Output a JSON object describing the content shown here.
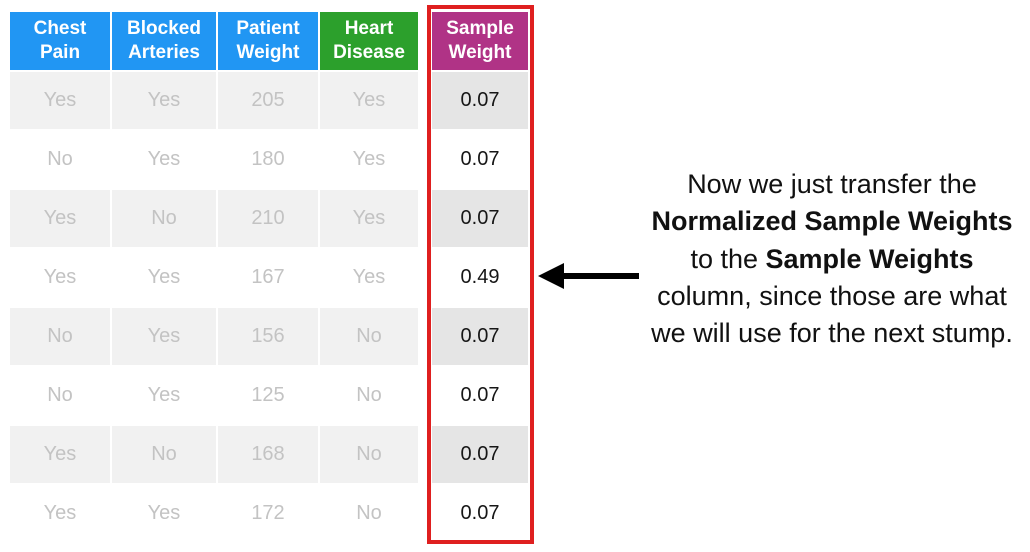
{
  "table": {
    "columns": [
      {
        "label": "Chest Pain",
        "header_color": "#2196f3"
      },
      {
        "label": "Blocked Arteries",
        "header_color": "#2196f3"
      },
      {
        "label": "Patient Weight",
        "header_color": "#2196f3"
      },
      {
        "label": "Heart Disease",
        "header_color": "#2ca02c"
      },
      {
        "label": "Sample Weight",
        "header_color": "#b03386"
      }
    ],
    "rows": [
      [
        "Yes",
        "Yes",
        "205",
        "Yes",
        "0.07"
      ],
      [
        "No",
        "Yes",
        "180",
        "Yes",
        "0.07"
      ],
      [
        "Yes",
        "No",
        "210",
        "Yes",
        "0.07"
      ],
      [
        "Yes",
        "Yes",
        "167",
        "Yes",
        "0.49"
      ],
      [
        "No",
        "Yes",
        "156",
        "No",
        "0.07"
      ],
      [
        "No",
        "Yes",
        "125",
        "No",
        "0.07"
      ],
      [
        "Yes",
        "No",
        "168",
        "No",
        "0.07"
      ],
      [
        "Yes",
        "Yes",
        "172",
        "No",
        "0.07"
      ]
    ],
    "highlight": {
      "column": "Sample Weight",
      "border_color": "#df1f1f"
    }
  },
  "annotation": {
    "segments": [
      {
        "text": "Now we just transfer the ",
        "bold": false
      },
      {
        "text": "Normalized Sample Weights",
        "bold": true
      },
      {
        "text": " to the ",
        "bold": false
      },
      {
        "text": "Sample Weights",
        "bold": true
      },
      {
        "text": " column, since those are what we will use for the next stump.",
        "bold": false
      }
    ]
  },
  "colors": {
    "header_blue": "#2196f3",
    "header_green": "#2ca02c",
    "header_magenta": "#b03386",
    "highlight_border": "#df1f1f",
    "row_alt": "#f1f1f1",
    "muted_text": "#c3c3c3",
    "arrow": "#000000"
  }
}
